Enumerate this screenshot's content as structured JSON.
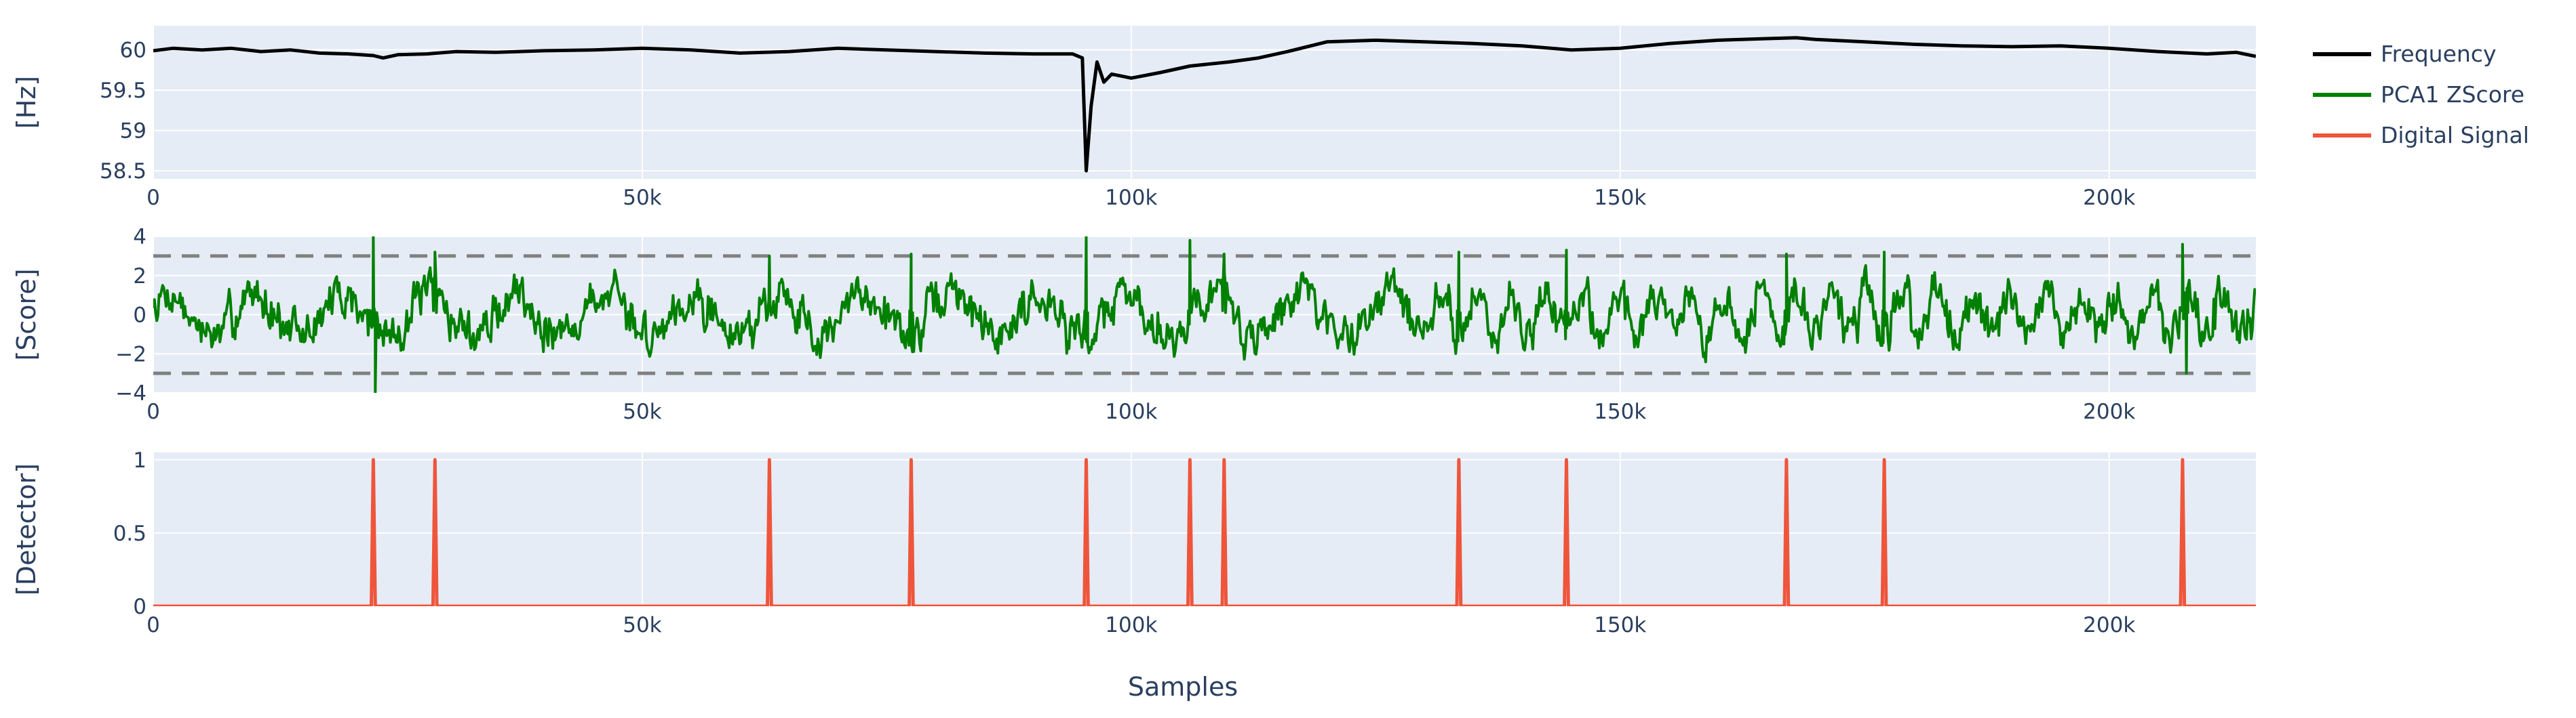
{
  "chart_data": [
    {
      "type": "line",
      "ylabel": "[Hz]",
      "xlabel": "",
      "xlim": [
        0,
        215000
      ],
      "ylim": [
        58.4,
        60.3
      ],
      "yticks": [
        58.5,
        59,
        59.5,
        60
      ],
      "ytick_labels": [
        "58.5",
        "59",
        "59.5",
        "60"
      ],
      "xticks": [
        0,
        50000,
        100000,
        150000,
        200000
      ],
      "xtick_labels": [
        "0",
        "50k",
        "100k",
        "150k",
        "200k"
      ],
      "grid": true,
      "series": [
        {
          "name": "Frequency",
          "color": "#000000",
          "points": [
            [
              0,
              59.99
            ],
            [
              2000,
              60.02
            ],
            [
              5000,
              60.0
            ],
            [
              8000,
              60.02
            ],
            [
              11000,
              59.98
            ],
            [
              14000,
              60.0
            ],
            [
              17000,
              59.96
            ],
            [
              20000,
              59.95
            ],
            [
              22500,
              59.93
            ],
            [
              23500,
              59.9
            ],
            [
              25000,
              59.94
            ],
            [
              28000,
              59.95
            ],
            [
              31000,
              59.98
            ],
            [
              35000,
              59.97
            ],
            [
              40000,
              59.99
            ],
            [
              45000,
              60.0
            ],
            [
              50000,
              60.02
            ],
            [
              55000,
              60.0
            ],
            [
              60000,
              59.96
            ],
            [
              65000,
              59.98
            ],
            [
              70000,
              60.02
            ],
            [
              75000,
              60.0
            ],
            [
              80000,
              59.98
            ],
            [
              85000,
              59.96
            ],
            [
              90000,
              59.95
            ],
            [
              94000,
              59.95
            ],
            [
              95000,
              59.9
            ],
            [
              95400,
              58.5
            ],
            [
              95900,
              59.3
            ],
            [
              96500,
              59.85
            ],
            [
              97200,
              59.6
            ],
            [
              98000,
              59.7
            ],
            [
              100000,
              59.65
            ],
            [
              103000,
              59.72
            ],
            [
              106000,
              59.8
            ],
            [
              110000,
              59.85
            ],
            [
              113000,
              59.9
            ],
            [
              116000,
              59.98
            ],
            [
              120000,
              60.1
            ],
            [
              125000,
              60.12
            ],
            [
              130000,
              60.1
            ],
            [
              135000,
              60.08
            ],
            [
              140000,
              60.05
            ],
            [
              145000,
              60.0
            ],
            [
              150000,
              60.02
            ],
            [
              155000,
              60.08
            ],
            [
              160000,
              60.12
            ],
            [
              165000,
              60.14
            ],
            [
              168000,
              60.15
            ],
            [
              170000,
              60.13
            ],
            [
              175000,
              60.1
            ],
            [
              180000,
              60.07
            ],
            [
              185000,
              60.05
            ],
            [
              190000,
              60.04
            ],
            [
              195000,
              60.05
            ],
            [
              200000,
              60.02
            ],
            [
              205000,
              59.98
            ],
            [
              210000,
              59.95
            ],
            [
              213000,
              59.97
            ],
            [
              215000,
              59.92
            ]
          ]
        }
      ]
    },
    {
      "type": "line",
      "ylabel": "[Score]",
      "xlabel": "",
      "xlim": [
        0,
        215000
      ],
      "ylim": [
        -4,
        4
      ],
      "yticks": [
        -4,
        -2,
        0,
        2,
        4
      ],
      "ytick_labels": [
        "−4",
        "−2",
        "0",
        "2",
        "4"
      ],
      "xticks": [
        0,
        50000,
        100000,
        150000,
        200000
      ],
      "xtick_labels": [
        "0",
        "50k",
        "100k",
        "150k",
        "200k"
      ],
      "grid": true,
      "threshold_lines": [
        3,
        -3
      ],
      "series": [
        {
          "name": "PCA1 ZScore",
          "color": "#008000",
          "generated": true,
          "amplitude": 1.6,
          "spikes": [
            [
              22500,
              4.0
            ],
            [
              22700,
              -4.0
            ],
            [
              28800,
              3.2
            ],
            [
              63000,
              3.0
            ],
            [
              77500,
              3.1
            ],
            [
              95400,
              4.0
            ],
            [
              106000,
              3.8
            ],
            [
              109500,
              3.1
            ],
            [
              133500,
              3.2
            ],
            [
              144500,
              3.3
            ],
            [
              167000,
              3.1
            ],
            [
              177000,
              3.2
            ],
            [
              207500,
              3.6
            ],
            [
              207900,
              -3.0
            ]
          ]
        }
      ]
    },
    {
      "type": "line",
      "ylabel": "[Detector]",
      "xlabel": "Samples",
      "xlim": [
        0,
        215000
      ],
      "ylim": [
        0,
        1.05
      ],
      "yticks": [
        0,
        0.5,
        1
      ],
      "ytick_labels": [
        "0",
        "0.5",
        "1"
      ],
      "xticks": [
        0,
        50000,
        100000,
        150000,
        200000
      ],
      "xtick_labels": [
        "0",
        "50k",
        "100k",
        "150k",
        "200k"
      ],
      "grid": true,
      "series": [
        {
          "name": "Digital Signal",
          "color": "#ef553b",
          "pulses": [
            22500,
            28800,
            63000,
            77500,
            95400,
            106000,
            109500,
            133500,
            144500,
            167000,
            177000,
            207500
          ]
        }
      ]
    }
  ],
  "legend": {
    "placement": "right",
    "items": [
      {
        "label": "Frequency",
        "color": "#000000"
      },
      {
        "label": "PCA1 ZScore",
        "color": "#008000"
      },
      {
        "label": "Digital Signal",
        "color": "#ef553b"
      }
    ]
  },
  "colors": {
    "plot_bg": "#e5ecf6",
    "grid": "#ffffff",
    "threshold": "#808080",
    "text": "#2a3f5f"
  }
}
